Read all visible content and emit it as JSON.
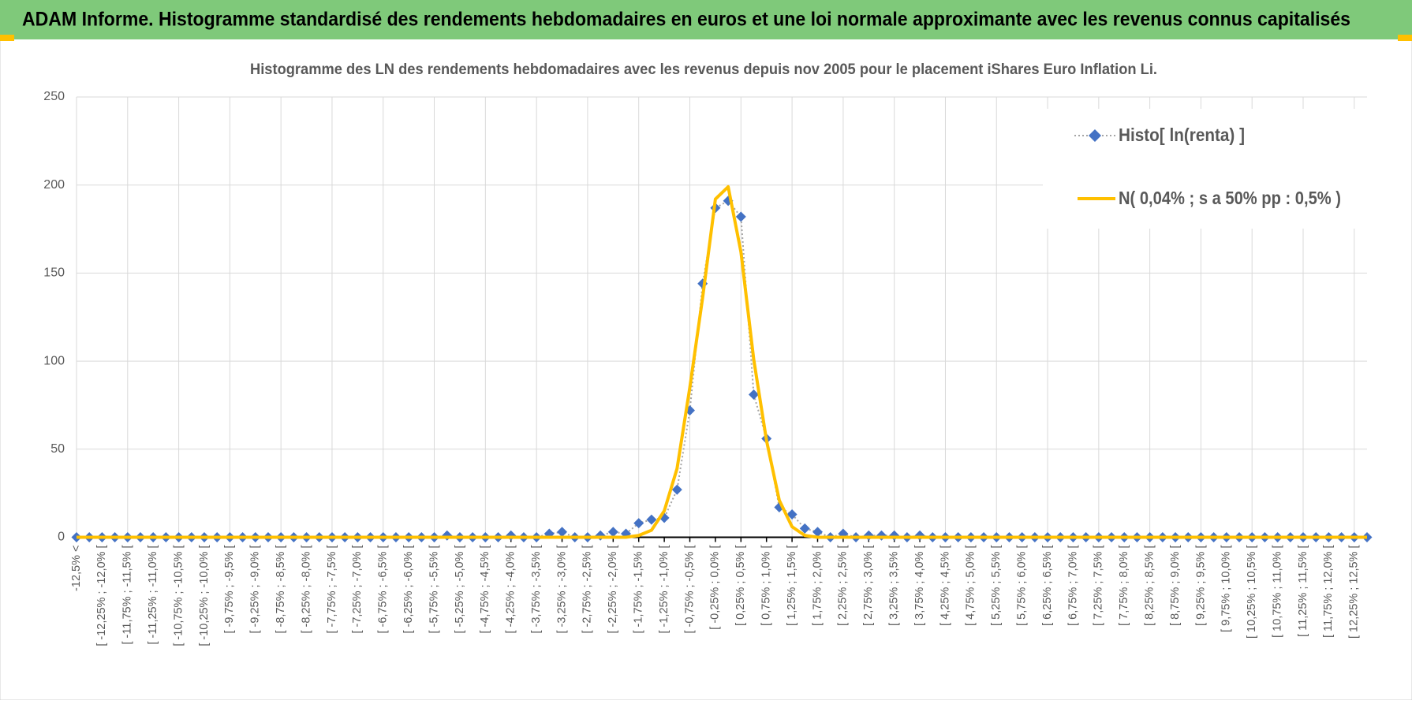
{
  "header": {
    "title": "ADAM Informe. Histogramme standardisé des rendements hebdomadaires en euros et une loi normale approximante avec les revenus connus capitalisés"
  },
  "chart_data": {
    "type": "line",
    "title": "Histogramme  des LN des rendements hebdomadaires avec les revenus depuis nov 2005 pour le placement iShares Euro Inflation Li.",
    "categories": [
      "-12,5% <",
      null,
      "[ -12,25% ; -12,0% [",
      null,
      "[ -11,75% ; -11,5% [",
      null,
      "[ -11,25% ; -11,0% [",
      null,
      "[ -10,75% ; -10,5% [",
      null,
      "[ -10,25% ; -10,0% [",
      null,
      "[ -9,75% ; -9,5% [",
      null,
      "[ -9,25% ; -9,0% [",
      null,
      "[ -8,75% ; -8,5% [",
      null,
      "[ -8,25% ; -8,0% [",
      null,
      "[ -7,75% ; -7,5% [",
      null,
      "[ -7,25% ; -7,0% [",
      null,
      "[ -6,75% ; -6,5% [",
      null,
      "[ -6,25% ; -6,0% [",
      null,
      "[ -5,75% ; -5,5% [",
      null,
      "[ -5,25% ; -5,0% [",
      null,
      "[ -4,75% ; -4,5% [",
      null,
      "[ -4,25% ; -4,0% [",
      null,
      "[ -3,75% ; -3,5% [",
      null,
      "[ -3,25% ; -3,0% [",
      null,
      "[ -2,75% ; -2,5% [",
      null,
      "[ -2,25% ; -2,0% [",
      null,
      "[ -1,75% ; -1,5% [",
      null,
      "[ -1,25% ; -1,0% [",
      null,
      "[ -0,75% ; -0,5% [",
      null,
      "[ -0,25% ; 0,0% [",
      null,
      "[ 0,25% ; 0,5% [",
      null,
      "[ 0,75% ; 1,0% [",
      null,
      "[ 1,25% ; 1,5% [",
      null,
      "[ 1,75% ; 2,0% [",
      null,
      "[ 2,25% ; 2,5% [",
      null,
      "[ 2,75% ; 3,0% [",
      null,
      "[ 3,25% ; 3,5% [",
      null,
      "[ 3,75% ; 4,0% [",
      null,
      "[ 4,25% ; 4,5% [",
      null,
      "[ 4,75% ; 5,0% [",
      null,
      "[ 5,25% ; 5,5% [",
      null,
      "[ 5,75% ; 6,0% [",
      null,
      "[ 6,25% ; 6,5% [",
      null,
      "[ 6,75% ; 7,0% [",
      null,
      "[ 7,25% ; 7,5% [",
      null,
      "[ 7,75% ; 8,0% [",
      null,
      "[ 8,25% ; 8,5% [",
      null,
      "[ 8,75% ; 9,0% [",
      null,
      "[ 9,25% ; 9,5% [",
      null,
      "[ 9,75% ; 10,0% [",
      null,
      "[ 10,25% ; 10,5% [",
      null,
      "[ 10,75% ; 11,0% [",
      null,
      "[ 11,25% ; 11,5% [",
      null,
      "[ 11,75% ; 12,0% [",
      null,
      "[ 12,25% ; 12,5% [",
      null
    ],
    "series": [
      {
        "name": "Histo[ ln(renta) ]",
        "color": "#4472c4",
        "marker": "diamond",
        "line_color": "#a5a5a5",
        "dash": "dotted",
        "values": [
          0,
          0,
          0,
          0,
          0,
          0,
          0,
          0,
          0,
          0,
          0,
          0,
          0,
          0,
          0,
          0,
          0,
          0,
          0,
          0,
          0,
          0,
          0,
          0,
          0,
          0,
          0,
          0,
          0,
          1,
          0,
          0,
          0,
          0,
          1,
          0,
          0,
          2,
          3,
          0,
          0,
          1,
          3,
          2,
          8,
          10,
          11,
          27,
          72,
          144,
          187,
          191,
          182,
          81,
          56,
          17,
          13,
          5,
          3,
          0,
          2,
          0,
          1,
          1,
          1,
          0,
          1,
          0,
          0,
          0,
          0,
          0,
          0,
          0,
          0,
          0,
          0,
          0,
          0,
          0,
          0,
          0,
          0,
          0,
          0,
          0,
          0,
          0,
          0,
          0,
          0,
          0,
          0,
          0,
          0,
          0,
          0,
          0,
          0,
          0,
          0,
          0
        ]
      },
      {
        "name": "N( 0,04% ; s a 50% pp : 0,5% )",
        "color": "#ffc000",
        "values": [
          0,
          0,
          0,
          0,
          0,
          0,
          0,
          0,
          0,
          0,
          0,
          0,
          0,
          0,
          0,
          0,
          0,
          0,
          0,
          0,
          0,
          0,
          0,
          0,
          0,
          0,
          0,
          0,
          0,
          0,
          0,
          0,
          0,
          0,
          0,
          0,
          0,
          0,
          0,
          0,
          0,
          0,
          0,
          0,
          1,
          4,
          15,
          39,
          85,
          136,
          192,
          199,
          162,
          101,
          55,
          21,
          6,
          1,
          0,
          0,
          0,
          0,
          0,
          0,
          0,
          0,
          0,
          0,
          0,
          0,
          0,
          0,
          0,
          0,
          0,
          0,
          0,
          0,
          0,
          0,
          0,
          0,
          0,
          0,
          0,
          0,
          0,
          0,
          0,
          0,
          0,
          0,
          0,
          0,
          0,
          0,
          0,
          0,
          0,
          0,
          0,
          0
        ]
      }
    ],
    "ylim": [
      0,
      250
    ],
    "yticks": [
      0,
      50,
      100,
      150,
      200,
      250
    ],
    "grid": true,
    "legend": "top-right"
  }
}
